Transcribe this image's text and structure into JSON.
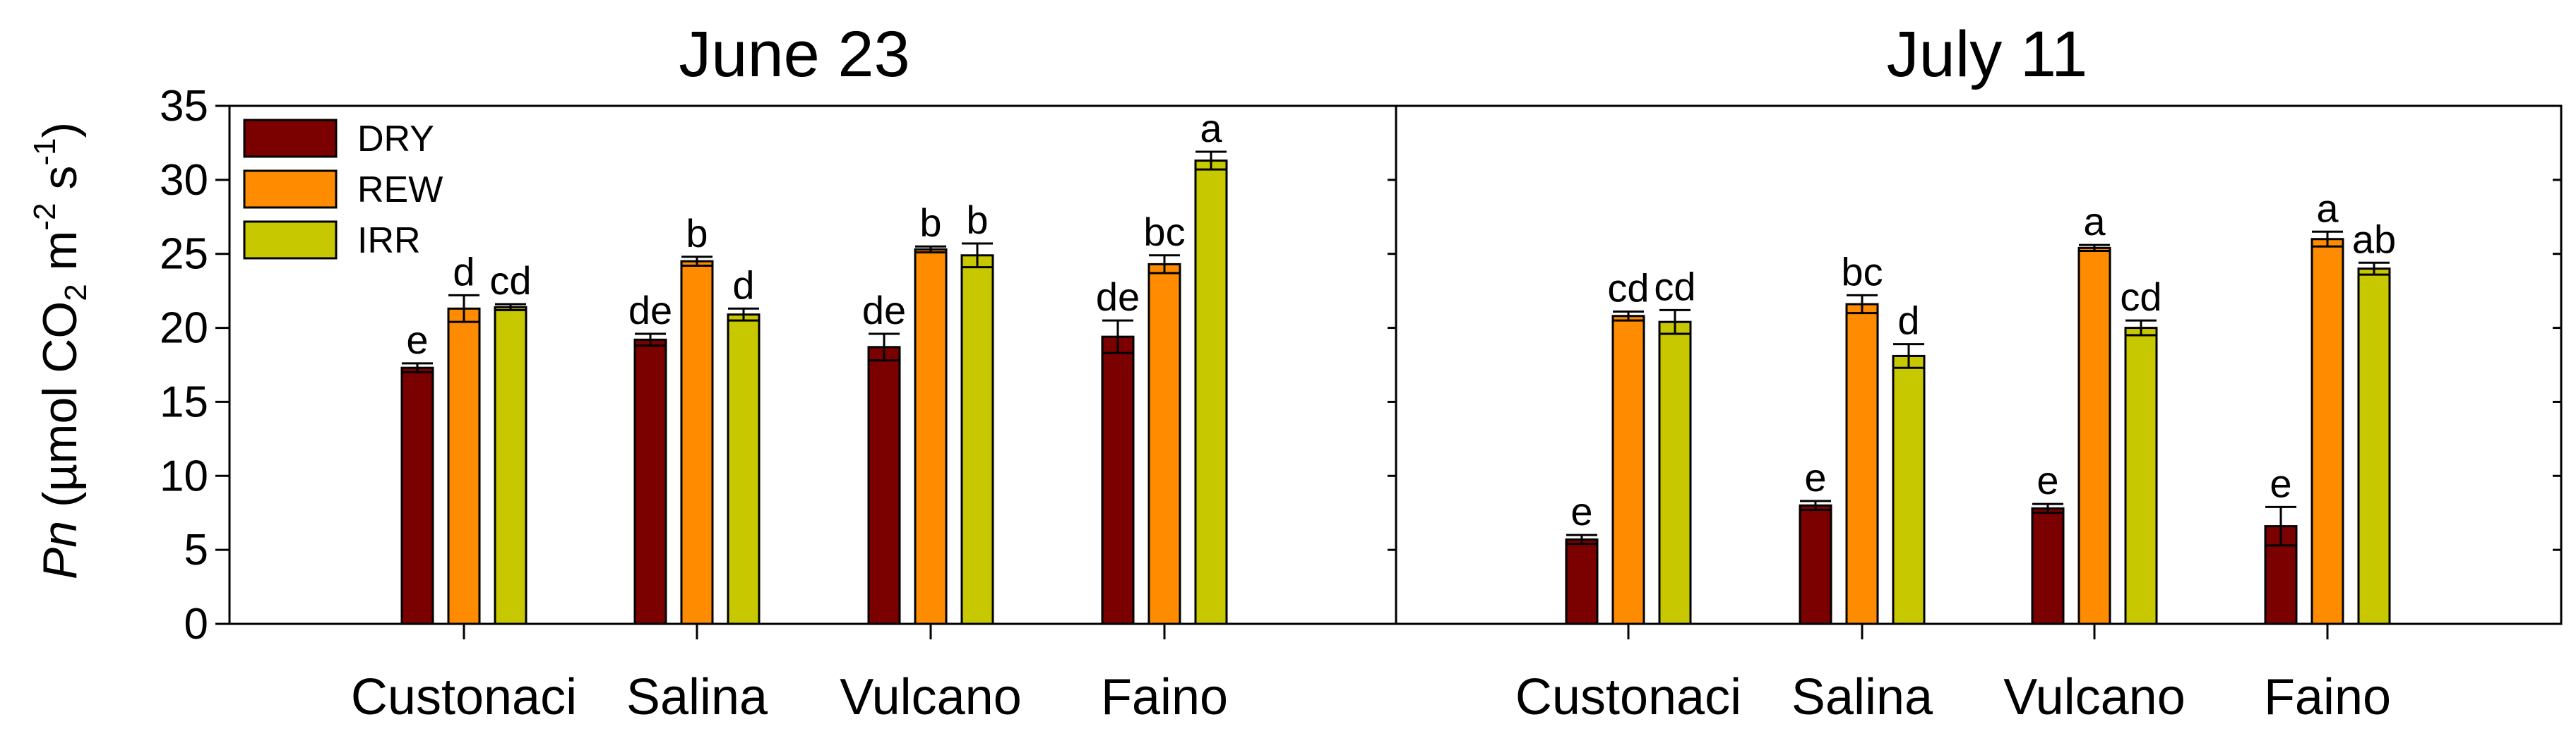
{
  "chart_data": {
    "type": "bar",
    "ylabel": {
      "italic": "Pn",
      "rest": " (µmol CO",
      "sub": "2",
      "m": " m",
      "sup1": "-2",
      "s": " s",
      "sup2": "-1",
      "close": ")"
    },
    "ylim": [
      0,
      35
    ],
    "yticks": [
      0,
      5,
      10,
      15,
      20,
      25,
      30,
      35
    ],
    "categories": [
      "Custonaci",
      "Salina",
      "Vulcano",
      "Faino"
    ],
    "series_names": [
      "DRY",
      "REW",
      "IRR"
    ],
    "series_colors": [
      "#7b0000",
      "#ff8c00",
      "#c8c800"
    ],
    "legend_position": "top-left",
    "panels": [
      {
        "title": "June 23",
        "series": [
          {
            "name": "DRY",
            "values": [
              17.3,
              19.2,
              18.7,
              19.4
            ],
            "errors": [
              0.3,
              0.4,
              0.9,
              1.1
            ],
            "letters": [
              "e",
              "de",
              "de",
              "de"
            ]
          },
          {
            "name": "REW",
            "values": [
              21.3,
              24.5,
              25.3,
              24.3
            ],
            "errors": [
              0.9,
              0.3,
              0.2,
              0.6
            ],
            "letters": [
              "d",
              "b",
              "b",
              "bc"
            ]
          },
          {
            "name": "IRR",
            "values": [
              21.4,
              20.9,
              24.9,
              31.3
            ],
            "errors": [
              0.2,
              0.4,
              0.8,
              0.6
            ],
            "letters": [
              "cd",
              "d",
              "b",
              "a"
            ]
          }
        ]
      },
      {
        "title": "July 11",
        "series": [
          {
            "name": "DRY",
            "values": [
              5.7,
              8.0,
              7.8,
              6.6
            ],
            "errors": [
              0.3,
              0.3,
              0.3,
              1.3
            ],
            "letters": [
              "e",
              "e",
              "e",
              "e"
            ]
          },
          {
            "name": "REW",
            "values": [
              20.8,
              21.6,
              25.4,
              26.0
            ],
            "errors": [
              0.3,
              0.6,
              0.2,
              0.5
            ],
            "letters": [
              "cd",
              "bc",
              "a",
              "a"
            ]
          },
          {
            "name": "IRR",
            "values": [
              20.4,
              18.1,
              20.0,
              24.0
            ],
            "errors": [
              0.8,
              0.8,
              0.5,
              0.4
            ],
            "letters": [
              "cd",
              "d",
              "cd",
              "ab"
            ]
          }
        ]
      }
    ]
  }
}
